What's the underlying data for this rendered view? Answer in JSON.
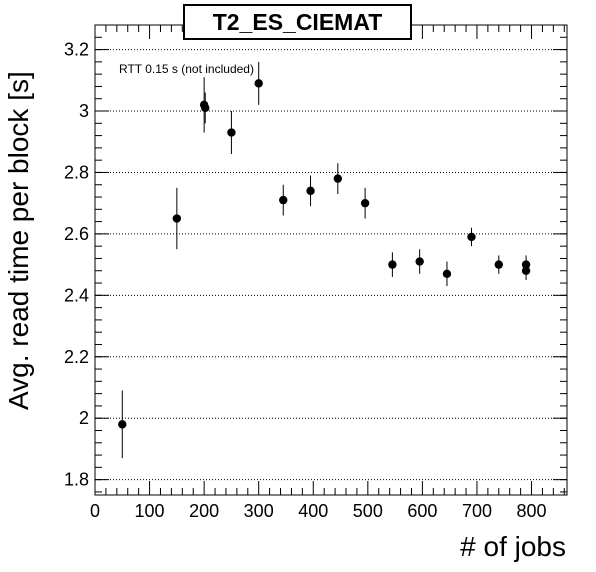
{
  "chart_data": {
    "type": "scatter",
    "title": "T2_ES_CIEMAT",
    "xlabel": "# of jobs",
    "ylabel": "Avg. read time per block [s]",
    "annotation": "RTT 0.15 s (not included)",
    "xlim": [
      0,
      865
    ],
    "ylim": [
      1.75,
      3.28
    ],
    "x_ticks": [
      0,
      100,
      200,
      300,
      400,
      500,
      600,
      700,
      800
    ],
    "y_ticks": [
      1.8,
      2,
      2.2,
      2.4,
      2.6,
      2.8,
      3,
      3.2
    ],
    "y_tick_labels": [
      "1.8",
      "2",
      "2.2",
      "2.4",
      "2.6",
      "2.8",
      "3",
      "3.2"
    ],
    "grid": "horizontal dotted",
    "series": [
      {
        "points": [
          {
            "x": 50,
            "y": 1.98,
            "err": 0.11
          },
          {
            "x": 150,
            "y": 2.65,
            "err": 0.1
          },
          {
            "x": 200,
            "y": 3.02,
            "err": 0.09
          },
          {
            "x": 202,
            "y": 3.01,
            "err": 0.05
          },
          {
            "x": 250,
            "y": 2.93,
            "err": 0.07
          },
          {
            "x": 300,
            "y": 3.09,
            "err": 0.07
          },
          {
            "x": 345,
            "y": 2.71,
            "err": 0.05
          },
          {
            "x": 395,
            "y": 2.74,
            "err": 0.05
          },
          {
            "x": 445,
            "y": 2.78,
            "err": 0.05
          },
          {
            "x": 495,
            "y": 2.7,
            "err": 0.05
          },
          {
            "x": 545,
            "y": 2.5,
            "err": 0.04
          },
          {
            "x": 595,
            "y": 2.51,
            "err": 0.04
          },
          {
            "x": 645,
            "y": 2.47,
            "err": 0.04
          },
          {
            "x": 690,
            "y": 2.59,
            "err": 0.03
          },
          {
            "x": 740,
            "y": 2.5,
            "err": 0.03
          },
          {
            "x": 790,
            "y": 2.5,
            "err": 0.03
          },
          {
            "x": 790,
            "y": 2.48,
            "err": 0.03
          }
        ],
        "color": "#000000"
      }
    ]
  }
}
